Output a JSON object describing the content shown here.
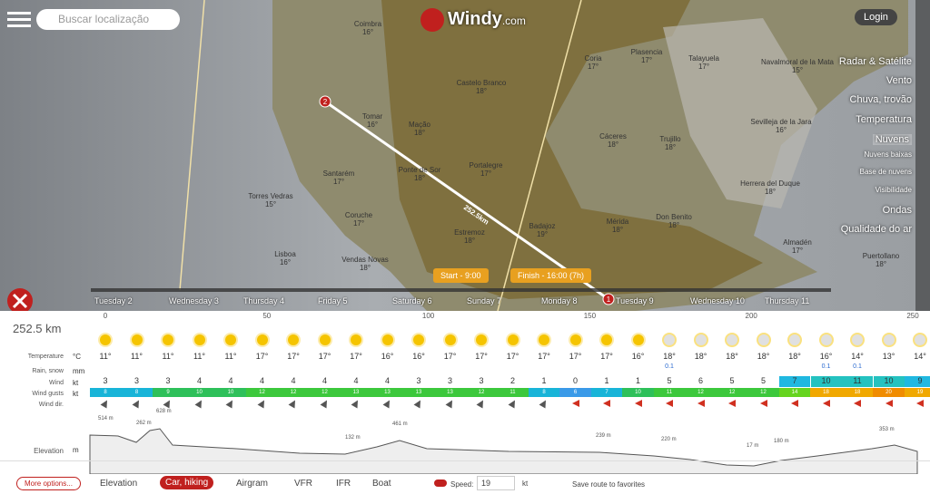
{
  "header": {
    "search_placeholder": "Buscar localização",
    "logo": "Windy",
    "logo_suffix": ".com",
    "login": "Login"
  },
  "map_labels": [
    {
      "name": "Coimbra",
      "temp": "16°"
    },
    {
      "name": "Castelo Branco",
      "temp": "18°"
    },
    {
      "name": "Tomar",
      "temp": "16°"
    },
    {
      "name": "Mação",
      "temp": "18°"
    },
    {
      "name": "Portalegre",
      "temp": "17°"
    },
    {
      "name": "Ponte de Sor",
      "temp": "18°"
    },
    {
      "name": "Santarém",
      "temp": "17°"
    },
    {
      "name": "Torres Vedras",
      "temp": "15°"
    },
    {
      "name": "Coruche",
      "temp": "17°"
    },
    {
      "name": "Lisboa",
      "temp": "16°"
    },
    {
      "name": "Vendas Novas",
      "temp": "18°"
    },
    {
      "name": "Estremoz",
      "temp": "18°"
    },
    {
      "name": "Badajoz",
      "temp": "19°"
    },
    {
      "name": "Mérida",
      "temp": "18°"
    },
    {
      "name": "Cáceres",
      "temp": "18°"
    },
    {
      "name": "Trujillo",
      "temp": "18°"
    },
    {
      "name": "Don Benito",
      "temp": "18°"
    },
    {
      "name": "Coria",
      "temp": "17°"
    },
    {
      "name": "Plasencia",
      "temp": "17°"
    },
    {
      "name": "Talayuela",
      "temp": "17°"
    },
    {
      "name": "Navalmoral de la Mata",
      "temp": "15°"
    },
    {
      "name": "Sevilleja de la Jara",
      "temp": "16°"
    },
    {
      "name": "Herrera del Duque",
      "temp": "18°"
    },
    {
      "name": "Almadén",
      "temp": "17°"
    },
    {
      "name": "Puertollano",
      "temp": "18°"
    }
  ],
  "layers": [
    "Radar & Satélite",
    "Vento",
    "Chuva, trovão",
    "Temperatura",
    "Nuvens",
    "Nuvens baixas",
    "Base de nuvens",
    "Visibilidade",
    "Ondas",
    "Qualidade do ar"
  ],
  "route": {
    "distance_label": "252.5km",
    "start_marker": "1",
    "end_marker": "2"
  },
  "timeline": {
    "start": "Start - 9:00",
    "finish": "Finish - 16:00 (7h)",
    "days": [
      "Tuesday 2",
      "Wednesday 3",
      "Thursday 4",
      "Friday 5",
      "Saturday 6",
      "Sunday 7",
      "Monday 8",
      "Tuesday 9",
      "Wednesday 10",
      "Thursday 11"
    ]
  },
  "panel": {
    "distance": "252.5 km",
    "axis": [
      0,
      50,
      100,
      150,
      200,
      250
    ],
    "rows": [
      {
        "label": "Temperature",
        "unit": "°C"
      },
      {
        "label": "Rain, snow",
        "unit": "mm"
      },
      {
        "label": "Wind",
        "unit": "kt"
      },
      {
        "label": "Wind gusts",
        "unit": "kt"
      },
      {
        "label": "Wind dir.",
        "unit": ""
      }
    ],
    "temperature": [
      "11°",
      "11°",
      "11°",
      "11°",
      "11°",
      "17°",
      "17°",
      "17°",
      "17°",
      "16°",
      "16°",
      "17°",
      "17°",
      "17°",
      "17°",
      "17°",
      "17°",
      "16°",
      "18°",
      "18°",
      "18°",
      "18°",
      "18°",
      "16°",
      "14°",
      "13°",
      "14°"
    ],
    "rain": [
      null,
      null,
      null,
      null,
      null,
      null,
      null,
      null,
      null,
      null,
      null,
      null,
      null,
      null,
      null,
      null,
      null,
      null,
      "0.1",
      null,
      null,
      null,
      null,
      "0.1",
      "0.1",
      null,
      null
    ],
    "wind": [
      3,
      3,
      3,
      4,
      4,
      4,
      4,
      4,
      4,
      4,
      3,
      3,
      3,
      2,
      1,
      0,
      1,
      1,
      5,
      6,
      5,
      5,
      7,
      10,
      11,
      10,
      9
    ],
    "gusts": [
      8,
      8,
      9,
      10,
      10,
      12,
      12,
      12,
      13,
      13,
      13,
      13,
      12,
      11,
      8,
      6,
      7,
      10,
      11,
      12,
      12,
      12,
      14,
      18,
      18,
      20,
      19
    ],
    "elevation_label": "Elevation",
    "elevation_unit": "m",
    "elevation_marks": [
      "514 m",
      "262 m",
      "628 m",
      "132 m",
      "461 m",
      "239 m",
      "220 m",
      "17 m",
      "180 m",
      "353 m"
    ]
  },
  "footer": {
    "more_options": "More options...",
    "modes": [
      "Elevation",
      "Car, hiking",
      "Airgram",
      "VFR",
      "IFR",
      "Boat"
    ],
    "speed_label": "Speed:",
    "speed_value": "19",
    "speed_unit": "kt",
    "save": "Save route to favorites"
  }
}
